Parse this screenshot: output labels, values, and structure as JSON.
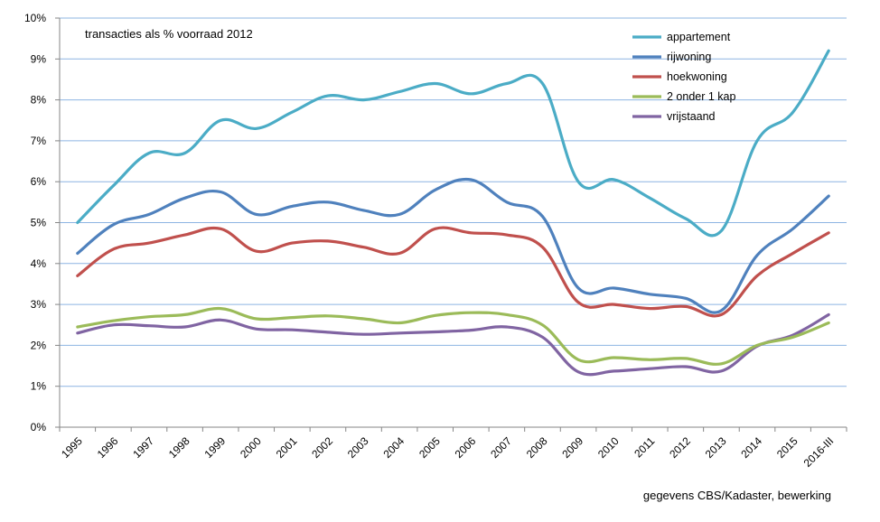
{
  "chart_data": {
    "type": "line",
    "title": "transacties als % voorraad 2012",
    "source": "gegevens CBS/Kadaster, bewerking",
    "xlabel": "",
    "ylabel": "",
    "categories": [
      "1995",
      "1996",
      "1997",
      "1998",
      "1999",
      "2000",
      "2001",
      "2002",
      "2003",
      "2004",
      "2005",
      "2006",
      "2007",
      "2008",
      "2009",
      "2010",
      "2011",
      "2012",
      "2013",
      "2014",
      "2015",
      "2016-III"
    ],
    "ylim": [
      0,
      10
    ],
    "yticks": [
      0,
      1,
      2,
      3,
      4,
      5,
      6,
      7,
      8,
      9,
      10
    ],
    "ytick_labels": [
      "0%",
      "1%",
      "2%",
      "3%",
      "4%",
      "5%",
      "6%",
      "7%",
      "8%",
      "9%",
      "10%"
    ],
    "grid": true,
    "legend_position": "top-right",
    "series": [
      {
        "name": "appartement",
        "color": "#4BACC6",
        "values": [
          5.0,
          5.9,
          6.7,
          6.7,
          7.5,
          7.3,
          7.7,
          8.1,
          8.0,
          8.2,
          8.4,
          8.15,
          8.4,
          8.4,
          6.0,
          6.05,
          5.6,
          5.1,
          4.8,
          7.0,
          7.7,
          9.2
        ]
      },
      {
        "name": "rijwoning",
        "color": "#4F81BD",
        "values": [
          4.25,
          4.95,
          5.2,
          5.6,
          5.75,
          5.2,
          5.4,
          5.5,
          5.3,
          5.2,
          5.8,
          6.05,
          5.5,
          5.15,
          3.4,
          3.4,
          3.25,
          3.15,
          2.85,
          4.2,
          4.85,
          5.65
        ]
      },
      {
        "name": "hoekwoning",
        "color": "#C0504D",
        "values": [
          3.7,
          4.35,
          4.5,
          4.7,
          4.85,
          4.3,
          4.5,
          4.55,
          4.4,
          4.25,
          4.85,
          4.75,
          4.7,
          4.4,
          3.05,
          3.0,
          2.9,
          2.95,
          2.75,
          3.7,
          4.25,
          4.75
        ]
      },
      {
        "name": "2 onder 1 kap",
        "color": "#9BBB59",
        "values": [
          2.45,
          2.6,
          2.7,
          2.75,
          2.9,
          2.65,
          2.68,
          2.72,
          2.65,
          2.55,
          2.73,
          2.8,
          2.75,
          2.5,
          1.65,
          1.7,
          1.65,
          1.68,
          1.55,
          2.0,
          2.2,
          2.55
        ]
      },
      {
        "name": "vrijstaand",
        "color": "#8064A2",
        "values": [
          2.3,
          2.5,
          2.48,
          2.45,
          2.62,
          2.4,
          2.38,
          2.32,
          2.27,
          2.3,
          2.33,
          2.37,
          2.45,
          2.2,
          1.35,
          1.37,
          1.43,
          1.48,
          1.37,
          1.98,
          2.25,
          2.75
        ]
      }
    ]
  }
}
